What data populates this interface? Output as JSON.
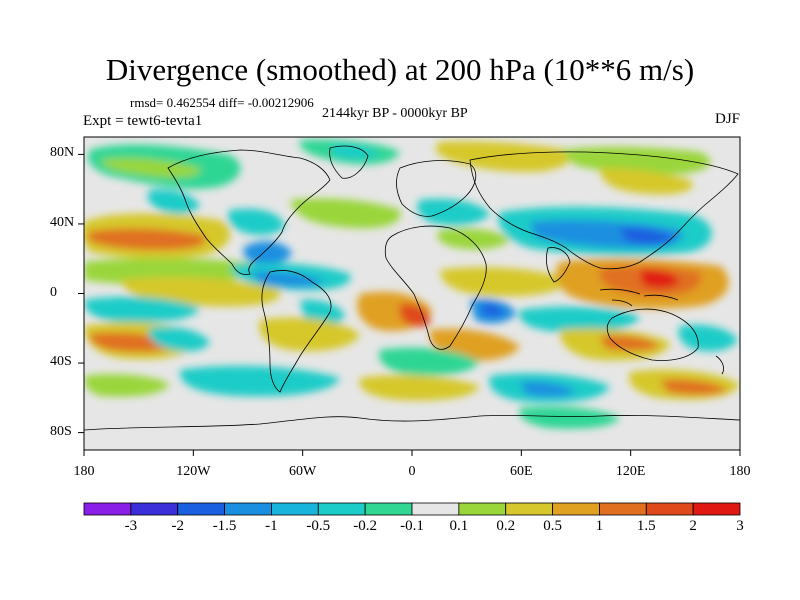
{
  "title": "Divergence (smoothed) at 200 hPa (10**6 m/s)",
  "stats": "rmsd= 0.462554 diff= -0.00212906",
  "experiment": "Expt = tewt6-tevta1",
  "period": "2144kyr BP - 0000kyr BP",
  "season": "DJF",
  "map": {
    "projection": "cylindrical-equidistant",
    "lon_range": [
      -180,
      180
    ],
    "lat_range": [
      -90,
      90
    ],
    "lat_ticks": [
      {
        "value": 80,
        "label": "80N"
      },
      {
        "value": 40,
        "label": "40N"
      },
      {
        "value": 0,
        "label": "0"
      },
      {
        "value": -40,
        "label": "40S"
      },
      {
        "value": -80,
        "label": "80S"
      }
    ],
    "lon_ticks": [
      {
        "value": -180,
        "label": "180"
      },
      {
        "value": -120,
        "label": "120W"
      },
      {
        "value": -60,
        "label": "60W"
      },
      {
        "value": 0,
        "label": "0"
      },
      {
        "value": 60,
        "label": "60E"
      },
      {
        "value": 120,
        "label": "120E"
      },
      {
        "value": 180,
        "label": "180"
      }
    ],
    "background_color": "#e6e6e6",
    "coastline_color": "#000000"
  },
  "colorbar": {
    "labels": [
      "-3",
      "-2",
      "-1.5",
      "-1",
      "-0.5",
      "-0.2",
      "-0.1",
      "0.1",
      "0.2",
      "0.5",
      "1",
      "1.5",
      "2",
      "3"
    ],
    "colors": [
      "#8a1fe8",
      "#3a2fd8",
      "#1a5fe0",
      "#1a8fe0",
      "#18b4dc",
      "#1cccc8",
      "#2fd694",
      "#e6e6e6",
      "#9ad63a",
      "#d6c82c",
      "#e0a020",
      "#e07020",
      "#e04a1a",
      "#e01a12"
    ]
  }
}
